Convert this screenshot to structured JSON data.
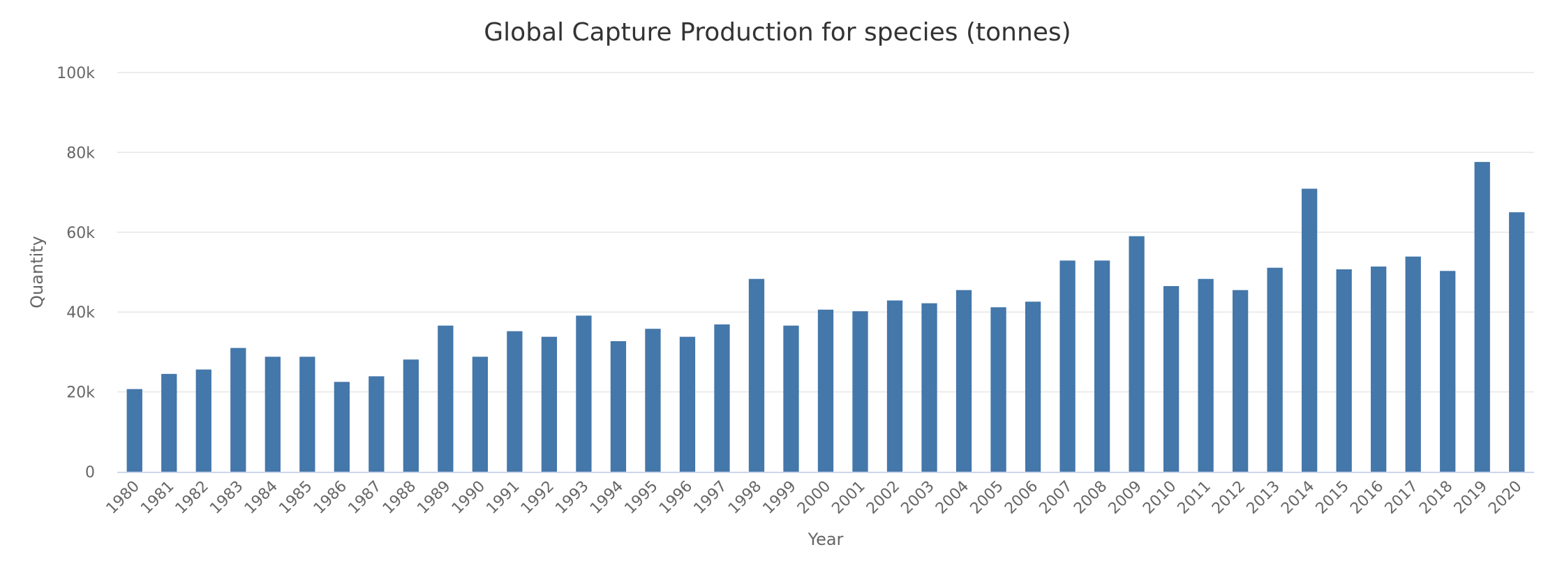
{
  "chart_data": {
    "type": "bar",
    "title": "Global Capture Production for species (tonnes)",
    "xlabel": "Year",
    "ylabel": "Quantity",
    "ylim": [
      0,
      100000
    ],
    "yticks": [
      0,
      20000,
      40000,
      60000,
      80000,
      100000
    ],
    "ytick_labels": [
      "0",
      "20k",
      "40k",
      "60k",
      "80k",
      "100k"
    ],
    "grid": true,
    "legend": "none",
    "bar_color": "#4477aa",
    "categories": [
      "1980",
      "1981",
      "1982",
      "1983",
      "1984",
      "1985",
      "1986",
      "1987",
      "1988",
      "1989",
      "1990",
      "1991",
      "1992",
      "1993",
      "1994",
      "1995",
      "1996",
      "1997",
      "1998",
      "1999",
      "2000",
      "2001",
      "2002",
      "2003",
      "2004",
      "2005",
      "2006",
      "2007",
      "2008",
      "2009",
      "2010",
      "2011",
      "2012",
      "2013",
      "2014",
      "2015",
      "2016",
      "2017",
      "2018",
      "2019",
      "2020"
    ],
    "values": [
      20700,
      24500,
      25600,
      31000,
      28800,
      28800,
      22500,
      23900,
      28100,
      36600,
      28800,
      35200,
      33800,
      39100,
      32700,
      35800,
      33800,
      36900,
      48300,
      36600,
      40600,
      40200,
      42900,
      42200,
      45500,
      41200,
      42600,
      52900,
      52900,
      59000,
      46500,
      48300,
      45500,
      51100,
      70900,
      50700,
      51400,
      53900,
      50300,
      77600,
      65000
    ]
  }
}
